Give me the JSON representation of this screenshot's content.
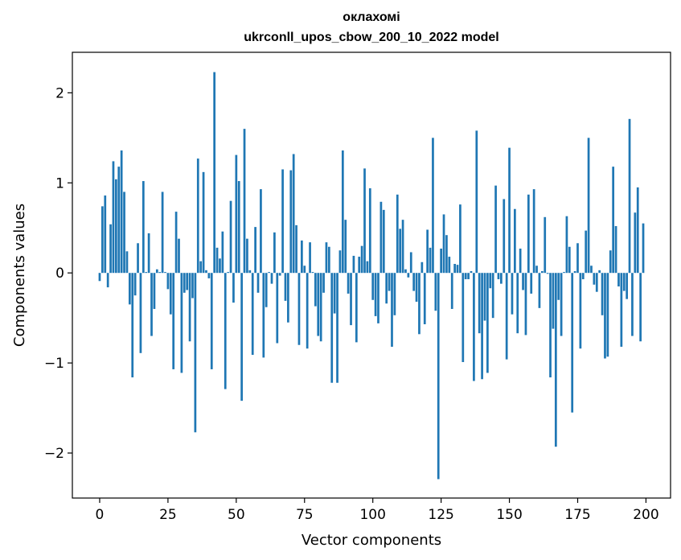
{
  "chart_data": {
    "type": "bar",
    "title": "оклахомі",
    "subtitle": "ukrconll_upos_cbow_200_10_2022 model",
    "xlabel": "Vector components",
    "ylabel": "Components values",
    "xlim": [
      -10,
      209
    ],
    "ylim": [
      -2.5,
      2.45
    ],
    "xticks": [
      0,
      25,
      50,
      75,
      100,
      125,
      150,
      175,
      200
    ],
    "xtick_labels": [
      "0",
      "25",
      "50",
      "75",
      "100",
      "125",
      "150",
      "175",
      "200"
    ],
    "yticks": [
      -2,
      -1,
      0,
      1,
      2
    ],
    "ytick_labels": [
      "−2",
      "−1",
      "0",
      "1",
      "2"
    ],
    "grid": false,
    "bar_color": "#1f77b4",
    "values": [
      -0.09,
      0.74,
      0.86,
      -0.16,
      0.54,
      1.24,
      1.04,
      1.18,
      1.36,
      0.9,
      0.24,
      -0.35,
      -1.16,
      -0.25,
      0.33,
      -0.89,
      1.02,
      0.01,
      0.44,
      -0.7,
      -0.4,
      0.04,
      0.01,
      0.9,
      0.01,
      -0.18,
      -0.46,
      -1.07,
      0.68,
      0.38,
      -1.11,
      -0.22,
      -0.19,
      -0.76,
      -0.28,
      -1.77,
      1.27,
      0.13,
      1.12,
      0.03,
      -0.06,
      -1.07,
      2.23,
      0.28,
      0.16,
      0.46,
      -1.29,
      0.01,
      0.8,
      -0.33,
      1.31,
      1.02,
      -1.42,
      1.6,
      0.38,
      0.03,
      -0.91,
      0.51,
      -0.22,
      0.93,
      -0.94,
      -0.38,
      0.01,
      -0.12,
      0.45,
      -0.78,
      -0.03,
      1.15,
      -0.31,
      -0.55,
      1.14,
      1.32,
      0.53,
      -0.8,
      0.36,
      0.08,
      -0.84,
      0.34,
      0.01,
      -0.37,
      -0.7,
      -0.76,
      -0.22,
      0.34,
      0.29,
      -1.22,
      -0.45,
      -1.22,
      0.25,
      1.36,
      0.59,
      -0.23,
      -0.58,
      0.19,
      -0.77,
      0.18,
      0.3,
      1.16,
      0.13,
      0.94,
      -0.3,
      -0.48,
      -0.56,
      0.79,
      0.7,
      -0.34,
      -0.2,
      -0.82,
      -0.47,
      0.87,
      0.49,
      0.59,
      0.04,
      -0.05,
      0.23,
      -0.2,
      -0.32,
      -0.68,
      0.12,
      -0.57,
      0.48,
      0.28,
      1.5,
      -0.42,
      -2.29,
      0.27,
      0.65,
      0.42,
      0.18,
      -0.4,
      0.1,
      0.09,
      0.76,
      -0.99,
      -0.07,
      -0.07,
      0.02,
      -1.2,
      1.58,
      -0.67,
      -1.18,
      -0.53,
      -1.11,
      -0.17,
      -0.5,
      0.97,
      -0.07,
      -0.12,
      0.82,
      -0.96,
      1.39,
      -0.46,
      0.71,
      -0.67,
      0.27,
      -0.19,
      -0.69,
      0.87,
      -0.23,
      0.93,
      0.08,
      -0.39,
      0.02,
      0.62,
      -0.01,
      -1.16,
      -0.62,
      -1.93,
      -0.3,
      -0.7,
      0.01,
      0.63,
      0.29,
      -1.55,
      0.02,
      0.33,
      -0.84,
      -0.07,
      0.47,
      1.5,
      0.08,
      -0.13,
      -0.21,
      0.03,
      -0.47,
      -0.95,
      -0.93,
      0.25,
      1.18,
      0.52,
      -0.15,
      -0.82,
      -0.2,
      -0.29,
      1.71,
      -0.7,
      0.67,
      0.95,
      -0.76,
      0.55
    ]
  }
}
